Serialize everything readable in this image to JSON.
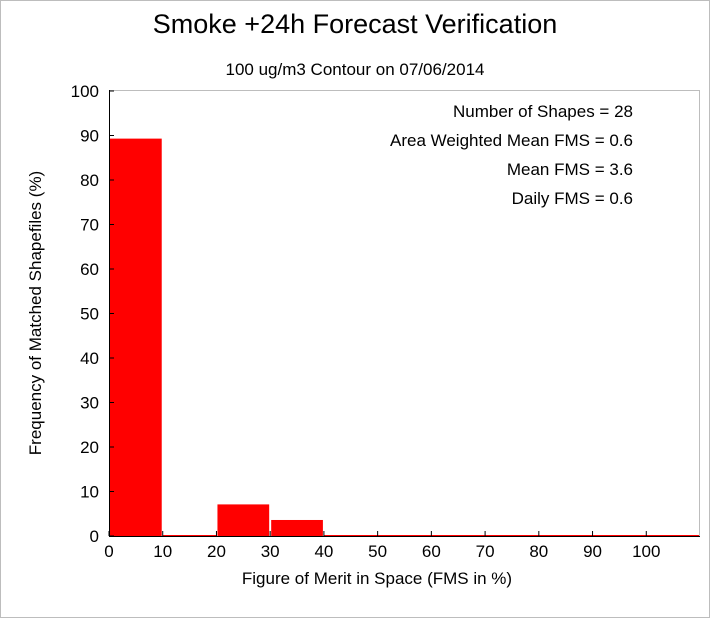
{
  "chart_data": {
    "type": "bar",
    "title": "Smoke +24h Forecast Verification",
    "subtitle": "100 ug/m3 Contour on 07/06/2014",
    "xlabel": "Figure of Merit in Space (FMS in %)",
    "ylabel": "Frequency of Matched Shapefiles (%)",
    "xlim": [
      0,
      110
    ],
    "ylim": [
      0,
      100
    ],
    "xticks": [
      0,
      10,
      20,
      30,
      40,
      50,
      60,
      70,
      80,
      90,
      100
    ],
    "yticks": [
      0,
      10,
      20,
      30,
      40,
      50,
      60,
      70,
      80,
      90,
      100
    ],
    "bin_width": 10,
    "bins": [
      0,
      10,
      20,
      30,
      40,
      50,
      60,
      70,
      80,
      90,
      100
    ],
    "values": [
      89.3,
      0,
      7.1,
      3.6,
      0,
      0,
      0,
      0,
      0,
      0,
      0
    ],
    "bar_color": "#ff0000",
    "grid": false,
    "annotations": [
      "Number of Shapes = 28",
      "Area Weighted Mean FMS = 0.6",
      "Mean FMS = 3.6",
      "Daily FMS = 0.6"
    ]
  }
}
